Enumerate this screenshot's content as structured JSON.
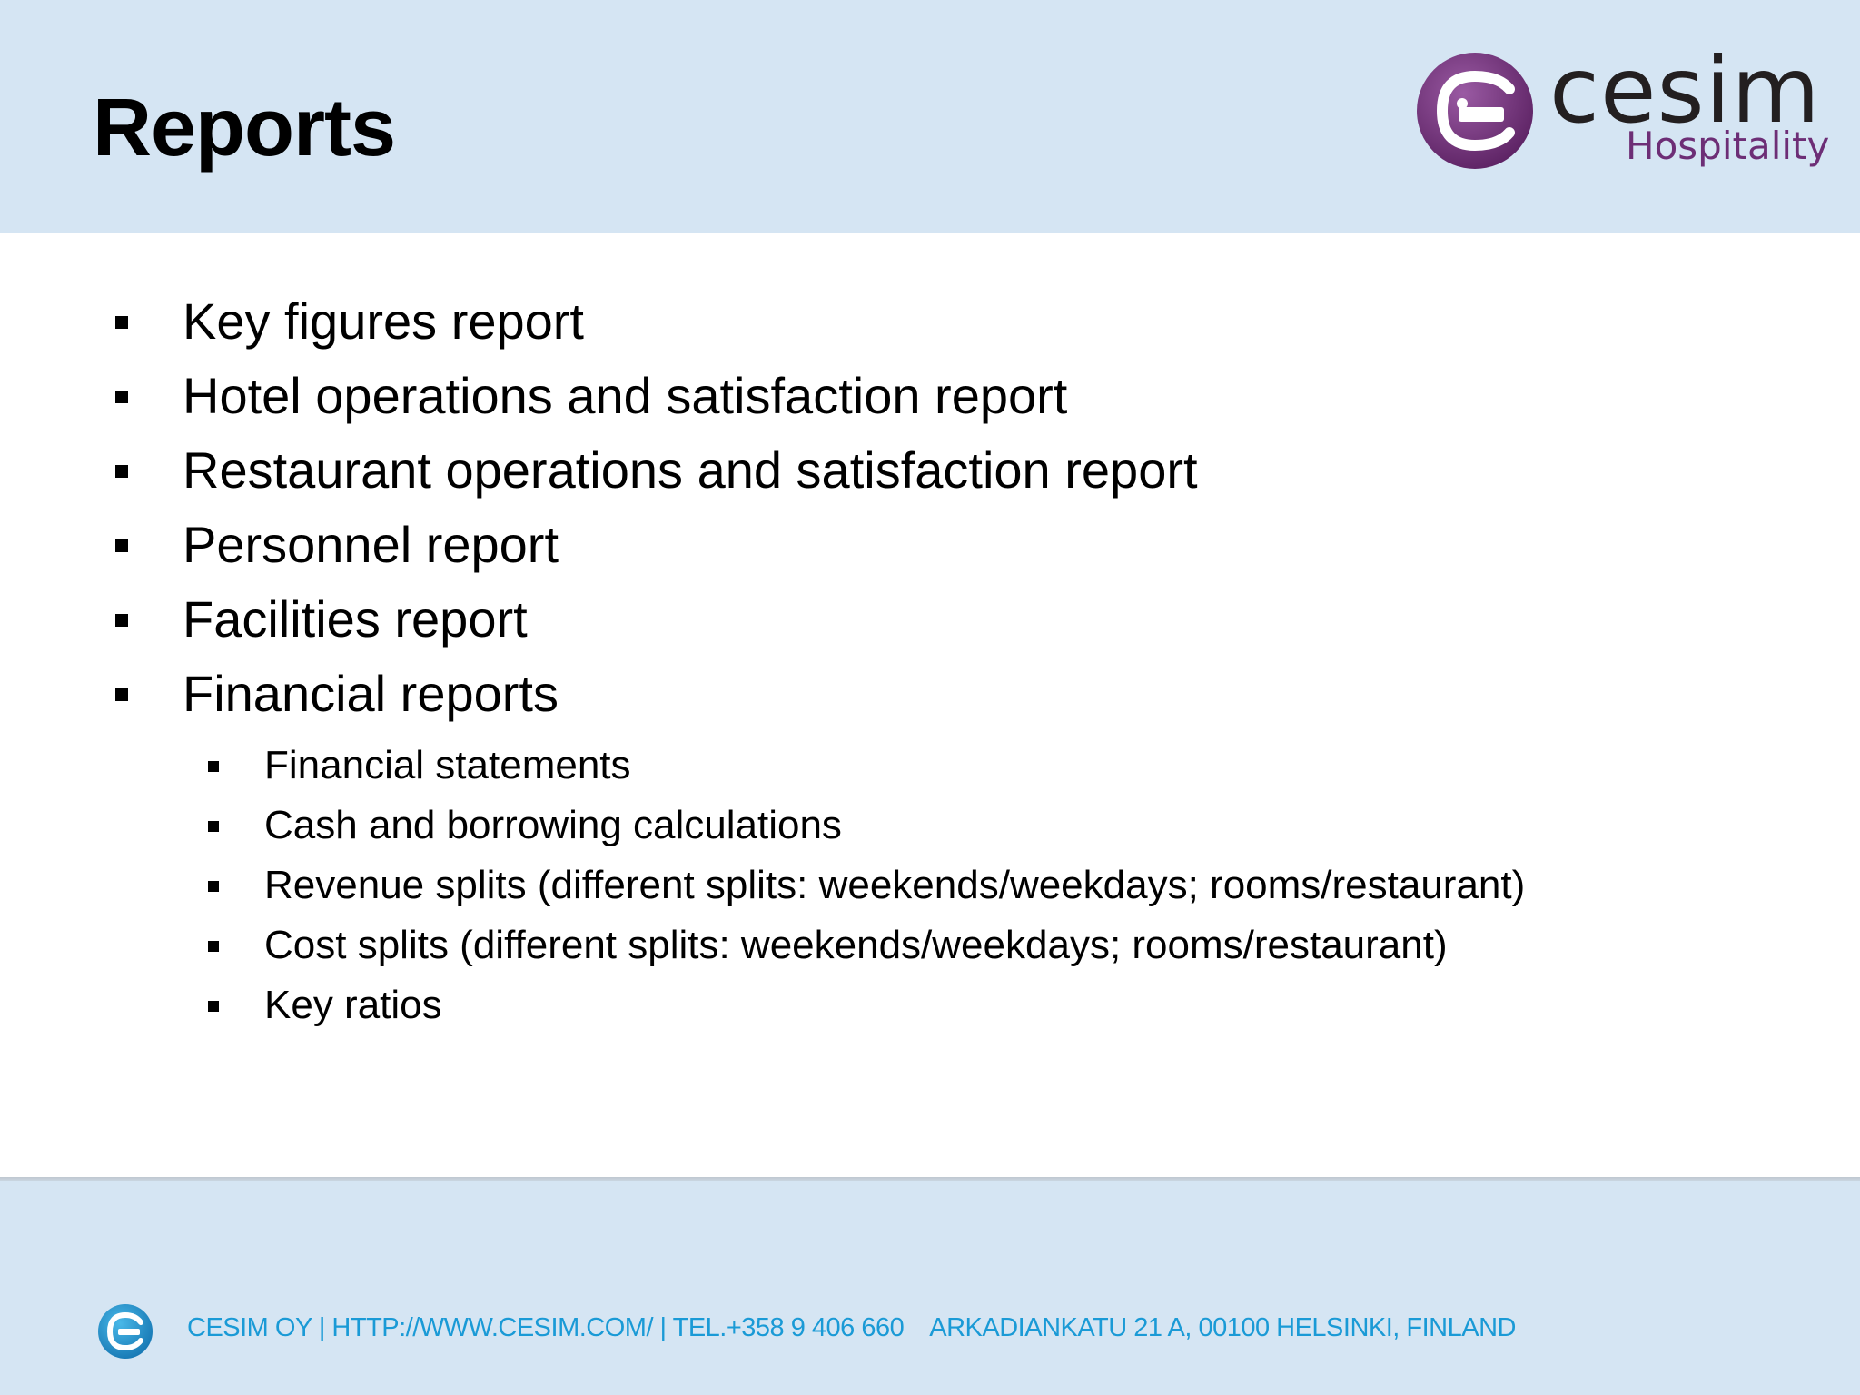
{
  "slide": {
    "title": "Reports",
    "logo": {
      "word": "cesim",
      "sub": "Hospitality",
      "colors": {
        "circle": "#6d2e76",
        "word": "#231f20",
        "sub": "#6d2e76"
      }
    },
    "main_items": [
      "Key figures report",
      "Hotel operations and satisfaction report",
      "Restaurant operations and satisfaction report",
      "Personnel report",
      "Facilities report",
      "Financial reports"
    ],
    "sub_items": [
      "Financial statements",
      "Cash and borrowing calculations",
      "Revenue splits (different splits: weekends/weekdays; rooms/restaurant)",
      "Cost splits (different splits: weekends/weekdays; rooms/restaurant)",
      "Key ratios"
    ]
  },
  "footer": {
    "contact": "CESIM OY | HTTP://WWW.CESIM.COM/ | TEL.+358 9 406 660",
    "address": "ARKADIANKATU 21 A, 00100 HELSINKI, FINLAND",
    "color": "#1a9ad6"
  },
  "colors": {
    "header_bg": "#d5e5f3",
    "content_bg": "#ffffff"
  }
}
